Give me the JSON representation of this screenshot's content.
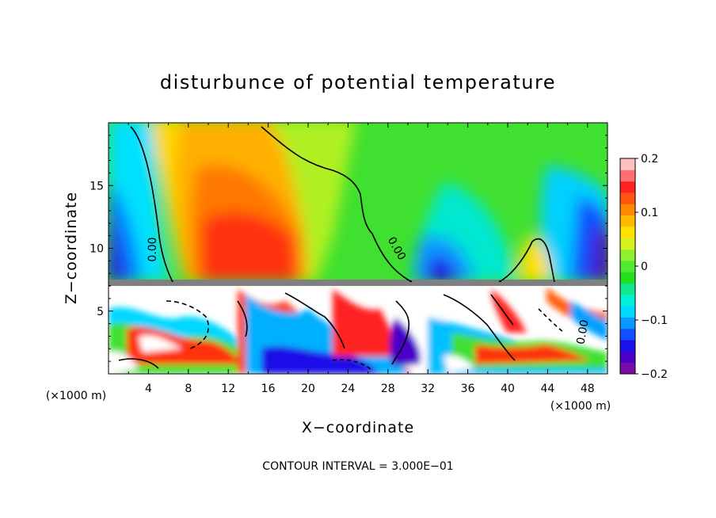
{
  "chart_data": {
    "type": "heatmap",
    "title": "disturbunce of potential temperature",
    "xlabel": "X−coordinate",
    "ylabel": "Z−coordinate",
    "x_unit_left": "(×1000 m)",
    "x_unit_right": "(×1000 m)",
    "xlim": [
      0,
      50
    ],
    "ylim": [
      0,
      20
    ],
    "x_ticks": [
      4,
      8,
      12,
      16,
      20,
      24,
      28,
      32,
      36,
      40,
      44,
      48
    ],
    "x_tick_labels": [
      "4",
      "8",
      "12",
      "16",
      "20",
      "24",
      "28",
      "32",
      "36",
      "40",
      "44",
      "48"
    ],
    "y_ticks": [
      5,
      10,
      15
    ],
    "y_tick_labels": [
      "5",
      "10",
      "15"
    ],
    "colorbar": {
      "range": [
        -0.2,
        0.2
      ],
      "ticks": [
        0.2,
        0.1,
        0,
        -0.1,
        -0.2
      ],
      "tick_labels": [
        "0.2",
        "0.1",
        "0",
        "−0.1",
        "−0.2"
      ],
      "colors": [
        "#7a0ba8",
        "#4a00c8",
        "#1a10e8",
        "#1050ff",
        "#0898ff",
        "#00d8ff",
        "#00f0d8",
        "#10e890",
        "#20e020",
        "#50e830",
        "#90f030",
        "#d8f020",
        "#ffe000",
        "#ffb800",
        "#ff8800",
        "#ff5510",
        "#ff2020",
        "#ff7070",
        "#ffc0c0"
      ]
    },
    "contour_zero_label": "0.00",
    "note": "CONTOUR INTERVAL = 3.000E−01"
  }
}
